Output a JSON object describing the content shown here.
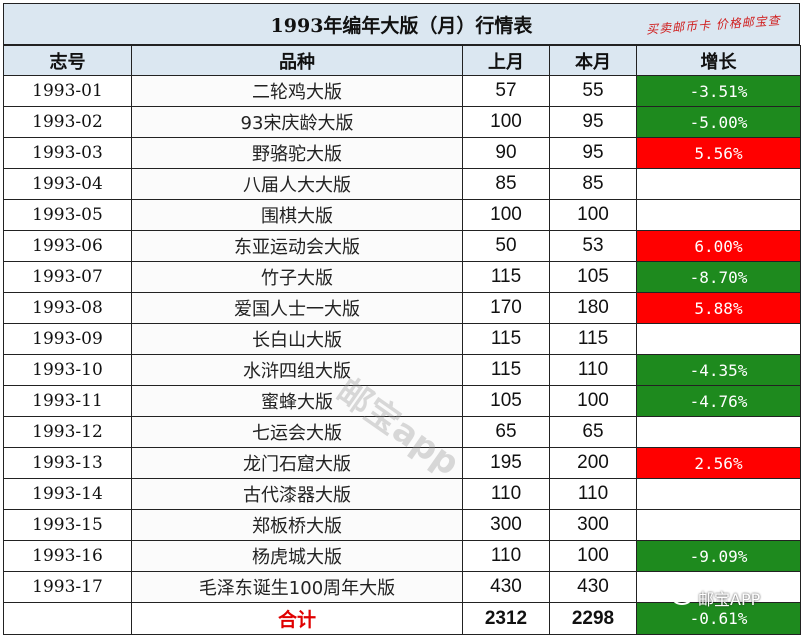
{
  "title": "1993年编年大版（月）行情表",
  "stamp": "买卖邮币卡 价格邮宝查",
  "headers": [
    "志号",
    "品种",
    "上月",
    "本月",
    "增长"
  ],
  "rows": [
    {
      "code": "1993-01",
      "name": "二轮鸡大版",
      "last": "57",
      "this": "55",
      "change": "-3.51%",
      "trend": "down"
    },
    {
      "code": "1993-02",
      "name": "93宋庆龄大版",
      "last": "100",
      "this": "95",
      "change": "-5.00%",
      "trend": "down"
    },
    {
      "code": "1993-03",
      "name": "野骆驼大版",
      "last": "90",
      "this": "95",
      "change": "5.56%",
      "trend": "up"
    },
    {
      "code": "1993-04",
      "name": "八届人大大版",
      "last": "85",
      "this": "85",
      "change": "",
      "trend": "flat"
    },
    {
      "code": "1993-05",
      "name": "围棋大版",
      "last": "100",
      "this": "100",
      "change": "",
      "trend": "flat"
    },
    {
      "code": "1993-06",
      "name": "东亚运动会大版",
      "last": "50",
      "this": "53",
      "change": "6.00%",
      "trend": "up"
    },
    {
      "code": "1993-07",
      "name": "竹子大版",
      "last": "115",
      "this": "105",
      "change": "-8.70%",
      "trend": "down"
    },
    {
      "code": "1993-08",
      "name": "爱国人士一大版",
      "last": "170",
      "this": "180",
      "change": "5.88%",
      "trend": "up"
    },
    {
      "code": "1993-09",
      "name": "长白山大版",
      "last": "115",
      "this": "115",
      "change": "",
      "trend": "flat"
    },
    {
      "code": "1993-10",
      "name": "水浒四组大版",
      "last": "115",
      "this": "110",
      "change": "-4.35%",
      "trend": "down"
    },
    {
      "code": "1993-11",
      "name": "蜜蜂大版",
      "last": "105",
      "this": "100",
      "change": "-4.76%",
      "trend": "down"
    },
    {
      "code": "1993-12",
      "name": "七运会大版",
      "last": "65",
      "this": "65",
      "change": "",
      "trend": "flat"
    },
    {
      "code": "1993-13",
      "name": "龙门石窟大版",
      "last": "195",
      "this": "200",
      "change": "2.56%",
      "trend": "up"
    },
    {
      "code": "1993-14",
      "name": "古代漆器大版",
      "last": "110",
      "this": "110",
      "change": "",
      "trend": "flat"
    },
    {
      "code": "1993-15",
      "name": "郑板桥大版",
      "last": "300",
      "this": "300",
      "change": "",
      "trend": "flat"
    },
    {
      "code": "1993-16",
      "name": "杨虎城大版",
      "last": "110",
      "this": "100",
      "change": "-9.09%",
      "trend": "down"
    },
    {
      "code": "1993-17",
      "name": "毛泽东诞生100周年大版",
      "last": "430",
      "this": "430",
      "change": "",
      "trend": "flat"
    }
  ],
  "total": {
    "label": "合计",
    "last": "2312",
    "this": "2298",
    "change": "-0.61%",
    "trend": "down"
  },
  "watermark": "邮宝app",
  "badge": "邮宝APP",
  "colors": {
    "header_bg": "#dbe7f1",
    "down": "#1e8a1e",
    "up": "#ff0000",
    "total_label": "#e00000"
  }
}
